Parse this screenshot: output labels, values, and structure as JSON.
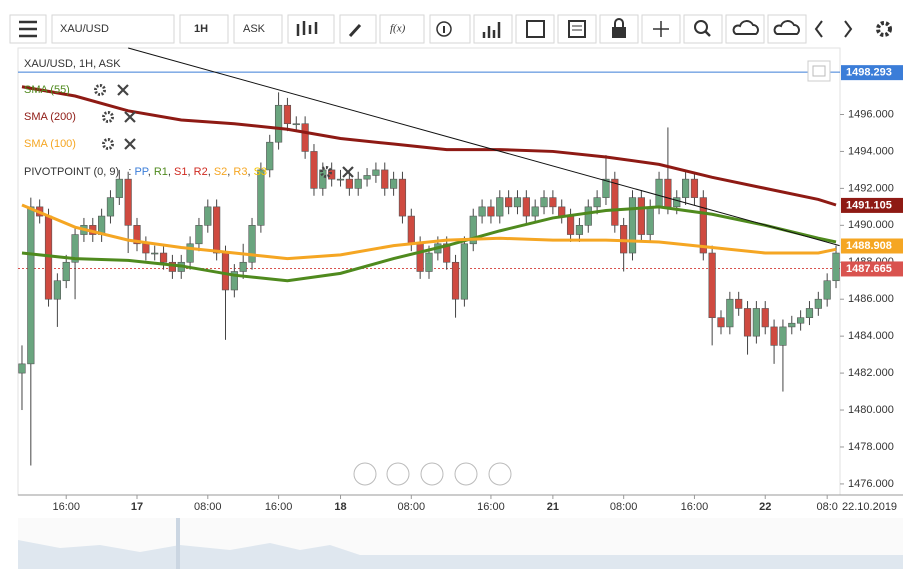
{
  "toolbar": {
    "symbol": "XAU/USD",
    "interval": "1H",
    "side": "ASK"
  },
  "chart_data": {
    "type": "candlestick",
    "title": "XAU/USD, 1H, ASK",
    "up_color": "#6aa57f",
    "down_color": "#cf4a40",
    "candles": [
      [
        1482,
        1483.5,
        1480,
        1482.5
      ],
      [
        1482.5,
        1491.5,
        1477,
        1491
      ],
      [
        1491,
        1491.4,
        1490.1,
        1490.5
      ],
      [
        1490.5,
        1490.9,
        1485.6,
        1486
      ],
      [
        1486,
        1487.4,
        1484.5,
        1487
      ],
      [
        1487,
        1488.4,
        1486.6,
        1488
      ],
      [
        1488,
        1489.9,
        1486,
        1489.5
      ],
      [
        1489.5,
        1490.4,
        1489.1,
        1490
      ],
      [
        1490,
        1490.4,
        1489.1,
        1489.5
      ],
      [
        1489.5,
        1490.9,
        1489.1,
        1490.5
      ],
      [
        1490.5,
        1491.9,
        1490.1,
        1491.5
      ],
      [
        1491.5,
        1493,
        1491.1,
        1492.5
      ],
      [
        1492.5,
        1492.9,
        1488.5,
        1490
      ],
      [
        1490,
        1490.4,
        1488.6,
        1489
      ],
      [
        1489,
        1489.4,
        1488.1,
        1488.5
      ],
      [
        1488.5,
        1488.9,
        1488.1,
        1488.5
      ],
      [
        1488.5,
        1488.9,
        1487.6,
        1488
      ],
      [
        1488,
        1488.4,
        1487.1,
        1487.5
      ],
      [
        1487.5,
        1488.4,
        1487.1,
        1488
      ],
      [
        1488,
        1489.4,
        1487.6,
        1489
      ],
      [
        1489,
        1490.4,
        1488.6,
        1490
      ],
      [
        1490,
        1491.4,
        1489.6,
        1491
      ],
      [
        1491,
        1491.4,
        1488.1,
        1488.5
      ],
      [
        1488.5,
        1488.9,
        1483.8,
        1486.5
      ],
      [
        1486.5,
        1487.9,
        1486.1,
        1487.5
      ],
      [
        1487.5,
        1489,
        1487.1,
        1488
      ],
      [
        1488,
        1490.4,
        1487.6,
        1490
      ],
      [
        1490,
        1493.4,
        1489.6,
        1493
      ],
      [
        1493,
        1494.9,
        1492.6,
        1494.5
      ],
      [
        1494.5,
        1497.2,
        1494.1,
        1496.5
      ],
      [
        1496.5,
        1496.9,
        1495.1,
        1495.5
      ],
      [
        1495.5,
        1495.9,
        1495.1,
        1495.5
      ],
      [
        1495.5,
        1495.9,
        1493.6,
        1494
      ],
      [
        1494,
        1494.4,
        1491.6,
        1492
      ],
      [
        1492,
        1493.4,
        1491.6,
        1493
      ],
      [
        1493,
        1493.4,
        1492.1,
        1492.5
      ],
      [
        1492.5,
        1493,
        1492.1,
        1492.5
      ],
      [
        1492.5,
        1492.9,
        1491.6,
        1492
      ],
      [
        1492,
        1492.9,
        1491.6,
        1492.5
      ],
      [
        1492.5,
        1493.1,
        1492.1,
        1492.7
      ],
      [
        1492.7,
        1493.4,
        1492.3,
        1493
      ],
      [
        1493,
        1493.4,
        1491.6,
        1492
      ],
      [
        1492,
        1492.9,
        1491.6,
        1492.5
      ],
      [
        1492.5,
        1492.9,
        1490.1,
        1490.5
      ],
      [
        1490.5,
        1490.9,
        1488.6,
        1489
      ],
      [
        1489,
        1489.4,
        1487.1,
        1487.5
      ],
      [
        1487.5,
        1488.9,
        1487.1,
        1488.5
      ],
      [
        1488.5,
        1489.4,
        1488.1,
        1489
      ],
      [
        1489,
        1489.4,
        1487.6,
        1488
      ],
      [
        1488,
        1488.4,
        1485,
        1486
      ],
      [
        1486,
        1489.4,
        1485.6,
        1489
      ],
      [
        1489,
        1490.9,
        1488.6,
        1490.5
      ],
      [
        1490.5,
        1491.4,
        1490.1,
        1491
      ],
      [
        1491,
        1491.4,
        1490.1,
        1490.5
      ],
      [
        1490.5,
        1491.9,
        1490.1,
        1491.5
      ],
      [
        1491.5,
        1491.9,
        1490.6,
        1491
      ],
      [
        1491,
        1491.9,
        1490.6,
        1491.5
      ],
      [
        1491.5,
        1491.9,
        1490.1,
        1490.5
      ],
      [
        1490.5,
        1491.4,
        1490.1,
        1491
      ],
      [
        1491,
        1491.9,
        1490.6,
        1491.5
      ],
      [
        1491.5,
        1491.9,
        1490.6,
        1491
      ],
      [
        1491,
        1491.4,
        1490.1,
        1490.5
      ],
      [
        1490.5,
        1490.9,
        1489.1,
        1489.5
      ],
      [
        1489.5,
        1490.4,
        1489.1,
        1490
      ],
      [
        1490,
        1491.4,
        1489.6,
        1491
      ],
      [
        1491,
        1491.9,
        1490.6,
        1491.5
      ],
      [
        1491.5,
        1493.8,
        1491.1,
        1492.5
      ],
      [
        1492.5,
        1492.9,
        1489.6,
        1490
      ],
      [
        1490,
        1490.4,
        1487.5,
        1488.5
      ],
      [
        1488.5,
        1491.9,
        1488.1,
        1491.5
      ],
      [
        1491.5,
        1491.9,
        1489.1,
        1489.5
      ],
      [
        1489.5,
        1491.4,
        1489.1,
        1491
      ],
      [
        1491,
        1492.9,
        1490.6,
        1492.5
      ],
      [
        1492.5,
        1495.3,
        1490.6,
        1491
      ],
      [
        1491,
        1491.9,
        1490.6,
        1491.5
      ],
      [
        1491.5,
        1492.9,
        1491.1,
        1492.5
      ],
      [
        1492.5,
        1492.9,
        1491.1,
        1491.5
      ],
      [
        1491.5,
        1491.9,
        1488.1,
        1488.5
      ],
      [
        1488.5,
        1488.9,
        1483.5,
        1485
      ],
      [
        1485,
        1485.4,
        1484.1,
        1484.5
      ],
      [
        1484.5,
        1486.4,
        1484.1,
        1486
      ],
      [
        1486,
        1486.4,
        1485.1,
        1485.5
      ],
      [
        1485.5,
        1485.9,
        1483,
        1484
      ],
      [
        1484,
        1485.9,
        1483.6,
        1485.5
      ],
      [
        1485.5,
        1485.9,
        1484.1,
        1484.5
      ],
      [
        1484.5,
        1484.9,
        1482.5,
        1483.5
      ],
      [
        1483.5,
        1484.9,
        1481,
        1484.5
      ],
      [
        1484.5,
        1485.1,
        1484.1,
        1484.7
      ],
      [
        1484.7,
        1485.4,
        1484.3,
        1485
      ],
      [
        1485,
        1485.9,
        1484.6,
        1485.5
      ],
      [
        1485.5,
        1486.4,
        1485.1,
        1486
      ],
      [
        1486,
        1487.4,
        1485.6,
        1487
      ],
      [
        1487,
        1488.9,
        1486.6,
        1488.5
      ]
    ],
    "series": [
      {
        "name": "SMA (55)",
        "color": "#4f8a1e",
        "x": [
          0,
          6,
          12,
          18,
          24,
          30,
          36,
          42,
          48,
          54,
          60,
          66,
          72,
          78,
          84,
          90,
          92
        ],
        "values": [
          1488.5,
          1488.2,
          1488.1,
          1487.8,
          1487.3,
          1487,
          1487.4,
          1488.2,
          1488.9,
          1489.7,
          1490.4,
          1490.8,
          1491,
          1490.6,
          1490,
          1489.3,
          1489.1
        ]
      },
      {
        "name": "SMA (200)",
        "color": "#8e1a14",
        "x": [
          0,
          6,
          12,
          18,
          24,
          30,
          36,
          42,
          48,
          54,
          60,
          66,
          72,
          78,
          84,
          90,
          92
        ],
        "values": [
          1497.5,
          1497,
          1496.2,
          1495.7,
          1495.5,
          1495.2,
          1494.7,
          1494.4,
          1494.1,
          1494.1,
          1494,
          1493.7,
          1493.3,
          1492.6,
          1492,
          1491.4,
          1491.1
        ]
      },
      {
        "name": "SMA (100)",
        "color": "#f5a623",
        "x": [
          0,
          6,
          12,
          18,
          24,
          30,
          36,
          42,
          48,
          54,
          60,
          66,
          72,
          78,
          84,
          90,
          92
        ],
        "values": [
          1491.1,
          1489.9,
          1489.2,
          1488.8,
          1488.5,
          1488.2,
          1488.4,
          1488.9,
          1489.2,
          1489.3,
          1489.2,
          1489.2,
          1489.1,
          1488.8,
          1488.5,
          1488.5,
          1488.7
        ]
      }
    ],
    "trendline": {
      "x": [
        12,
        92.4
      ],
      "values": [
        1499.6,
        1488.9
      ]
    },
    "pivot": {
      "name": "PIVOTPOINT (0, 9)",
      "parts": [
        {
          "text": ": ",
          "color": "#333"
        },
        {
          "text": "PP",
          "color": "#3b7dd8"
        },
        {
          "text": ", ",
          "color": "#333"
        },
        {
          "text": "R1",
          "color": "#4f8a1e"
        },
        {
          "text": ", ",
          "color": "#333"
        },
        {
          "text": "S1",
          "color": "#cf2a20"
        },
        {
          "text": ", ",
          "color": "#333"
        },
        {
          "text": "R2",
          "color": "#cf2a20"
        },
        {
          "text": ", ",
          "color": "#333"
        },
        {
          "text": "S2",
          "color": "#f5a623"
        },
        {
          "text": ", ",
          "color": "#333"
        },
        {
          "text": "R3",
          "color": "#f5a623"
        },
        {
          "text": ", ",
          "color": "#333"
        },
        {
          "text": "S3",
          "color": "#f5c400"
        }
      ]
    },
    "price_labels": [
      {
        "value": 1498.293,
        "color": "#3b7dd8"
      },
      {
        "value": 1491.105,
        "color": "#8e1a14"
      },
      {
        "value": 1488.908,
        "color": "#f5a623"
      },
      {
        "value": 1487.665,
        "color": "#d9534f"
      }
    ],
    "xlim": [
      -0.45,
      92.45
    ],
    "ylim": [
      1475.4,
      1499.6
    ],
    "yticks": [
      {
        "value": 1476,
        "label": "1476.000"
      },
      {
        "value": 1478,
        "label": "1478.000"
      },
      {
        "value": 1480,
        "label": "1480.000"
      },
      {
        "value": 1482,
        "label": "1482.000"
      },
      {
        "value": 1484,
        "label": "1484.000"
      },
      {
        "value": 1486,
        "label": "1486.000"
      },
      {
        "value": 1488,
        "label": "1488.000"
      },
      {
        "value": 1490,
        "label": "1490.000"
      },
      {
        "value": 1492,
        "label": "1492.000"
      },
      {
        "value": 1494,
        "label": "1494.000"
      },
      {
        "value": 1496,
        "label": "1496.000"
      }
    ],
    "xticks": [
      {
        "value": 5,
        "label": "16:00"
      },
      {
        "value": 13,
        "label": "17"
      },
      {
        "value": 21,
        "label": "08:00"
      },
      {
        "value": 29,
        "label": "16:00"
      },
      {
        "value": 36,
        "label": "18"
      },
      {
        "value": 44,
        "label": "08:00"
      },
      {
        "value": 53,
        "label": "16:00"
      },
      {
        "value": 60,
        "label": "21"
      },
      {
        "value": 68,
        "label": "08:00"
      },
      {
        "value": 76,
        "label": "16:00"
      },
      {
        "value": 84,
        "label": "22"
      },
      {
        "value": 91,
        "label": "08:0"
      }
    ],
    "date_label": "22.10.2019"
  }
}
